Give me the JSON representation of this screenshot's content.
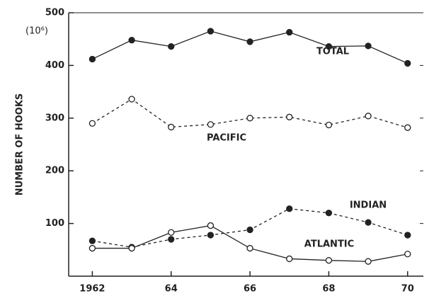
{
  "chart_data": {
    "type": "line",
    "y_label": "NUMBER OF HOOKS",
    "y_unit": "(10⁶)",
    "x": [
      1962,
      1963,
      1964,
      1965,
      1966,
      1967,
      1968,
      1969,
      1970
    ],
    "xlim": [
      1961.4,
      1970.4
    ],
    "xticks": [
      {
        "value": 1962,
        "label": "1962"
      },
      {
        "value": 1964,
        "label": "64"
      },
      {
        "value": 1966,
        "label": "66"
      },
      {
        "value": 1968,
        "label": "68"
      },
      {
        "value": 1970,
        "label": "70"
      }
    ],
    "ylim": [
      0,
      500
    ],
    "yticks": [
      100,
      200,
      300,
      400,
      500
    ],
    "grid": false,
    "series": [
      {
        "name": "TOTAL",
        "color": "#222222",
        "dash": "solid",
        "marker": "filled",
        "values": [
          412,
          448,
          436,
          465,
          445,
          463,
          436,
          437,
          404
        ]
      },
      {
        "name": "PACIFIC",
        "color": "#222222",
        "dash": "dashed",
        "marker": "open",
        "values": [
          290,
          336,
          283,
          288,
          300,
          302,
          287,
          304,
          282
        ]
      },
      {
        "name": "INDIAN",
        "color": "#222222",
        "dash": "dashed",
        "marker": "filled",
        "values": [
          67,
          55,
          70,
          78,
          88,
          128,
          120,
          102,
          78
        ]
      },
      {
        "name": "ATLANTIC",
        "color": "#222222",
        "dash": "solid",
        "marker": "open",
        "values": [
          53,
          53,
          83,
          96,
          53,
          33,
          30,
          28,
          42
        ]
      }
    ]
  }
}
